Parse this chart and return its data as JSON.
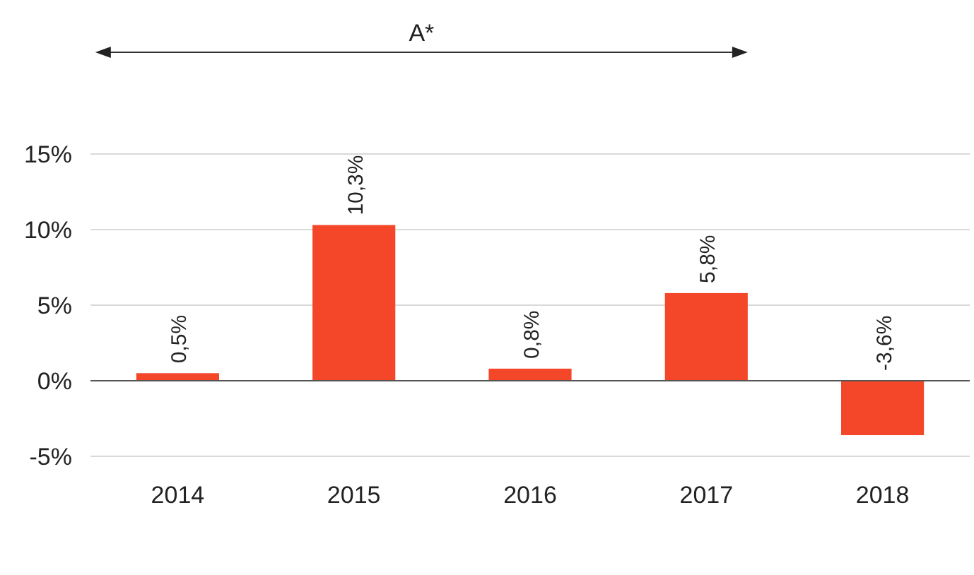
{
  "chart_data": {
    "type": "bar",
    "categories": [
      "2014",
      "2015",
      "2016",
      "2017",
      "2018"
    ],
    "series": [
      {
        "color": "#f4472a",
        "values": [
          0.5,
          10.3,
          0.8,
          5.8,
          -3.6
        ],
        "value_labels": [
          "0,5%",
          "10,3%",
          "0,8%",
          "5,8%",
          "-3,6%"
        ]
      }
    ],
    "ylim": [
      -5,
      15
    ],
    "yticks": [
      {
        "value": -5,
        "label": "-5%"
      },
      {
        "value": 0,
        "label": "0%"
      },
      {
        "value": 5,
        "label": "5%"
      },
      {
        "value": 10,
        "label": "10%"
      },
      {
        "value": 15,
        "label": "15%"
      }
    ],
    "grid": "y",
    "annotations": [
      "A*"
    ]
  }
}
